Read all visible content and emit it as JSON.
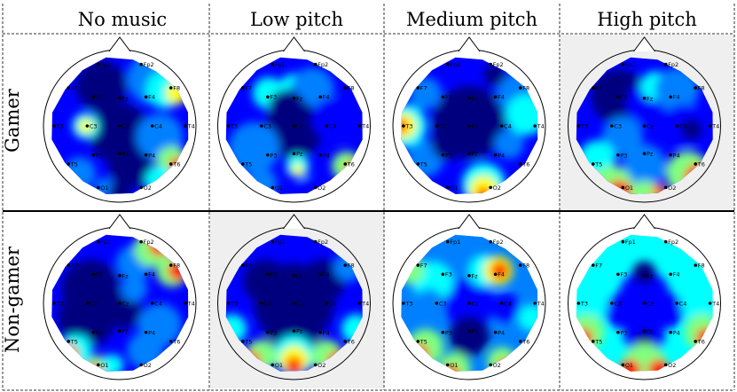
{
  "columns": [
    "No music",
    "Low pitch",
    "Medium pitch",
    "High pitch"
  ],
  "rows": [
    "Gamer",
    "Non-gamer"
  ],
  "electrodes": [
    "Fp1",
    "Fp2",
    "F7",
    "F3",
    "Fz",
    "F4",
    "F8",
    "T3",
    "C3",
    "Cz",
    "C4",
    "T4",
    "T5",
    "P3",
    "Pz",
    "P4",
    "T6",
    "O1",
    "O2"
  ],
  "colormap": [
    "#00007f",
    "#0000ff",
    "#0080ff",
    "#00ffff",
    "#80ff80",
    "#ffff00",
    "#ff8000",
    "#ff0000",
    "#7f0000"
  ],
  "shaded_panels": [
    "Gamer / High pitch",
    "Non-gamer / Low pitch"
  ],
  "panel_colors": {
    "shade": "#efefef",
    "frame": "#000000"
  }
}
